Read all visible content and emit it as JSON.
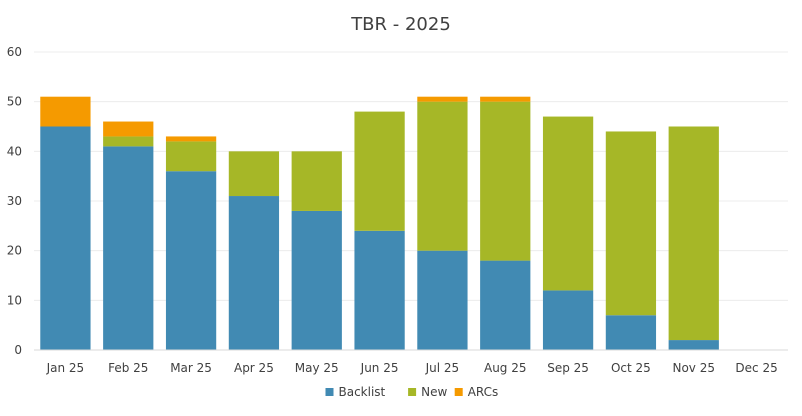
{
  "chart_data": {
    "type": "bar",
    "stacked": true,
    "title": "TBR - 2025",
    "xlabel": "",
    "ylabel": "",
    "ylim": [
      0,
      60
    ],
    "yticks": [
      0,
      10,
      20,
      30,
      40,
      50,
      60
    ],
    "grid": true,
    "legend_position": "bottom",
    "categories": [
      "Jan 25",
      "Feb 25",
      "Mar 25",
      "Apr 25",
      "May 25",
      "Jun 25",
      "Jul 25",
      "Aug 25",
      "Sep 25",
      "Oct 25",
      "Nov 25",
      "Dec 25"
    ],
    "series": [
      {
        "name": "Backlist",
        "color": "#418ab3",
        "values": [
          45,
          41,
          36,
          31,
          28,
          24,
          20,
          18,
          12,
          7,
          2,
          0
        ]
      },
      {
        "name": "New",
        "color": "#a6b727",
        "values": [
          0,
          2,
          6,
          9,
          12,
          24,
          30,
          32,
          35,
          37,
          43,
          0
        ]
      },
      {
        "name": "ARCs",
        "color": "#f59a00",
        "values": [
          6,
          3,
          1,
          0,
          0,
          0,
          1,
          1,
          0,
          0,
          0,
          0
        ]
      }
    ]
  }
}
